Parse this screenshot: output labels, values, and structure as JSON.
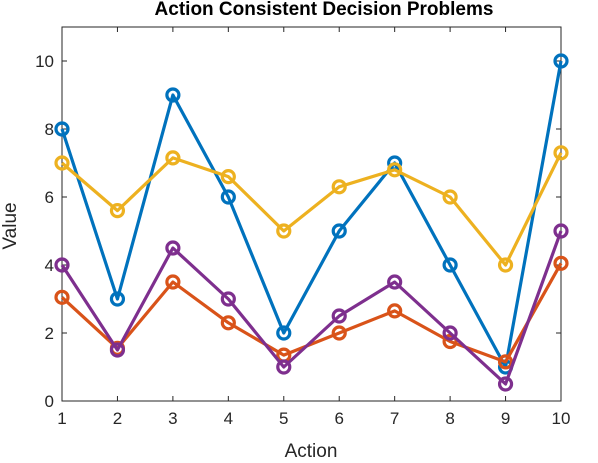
{
  "chart_data": {
    "type": "line",
    "title": "Action Consistent Decision Problems",
    "xlabel": "Action",
    "ylabel": "Value",
    "x": [
      1,
      2,
      3,
      4,
      5,
      6,
      7,
      8,
      9,
      10
    ],
    "xlim": [
      1,
      10
    ],
    "ylim": [
      0,
      11
    ],
    "xticks": [
      1,
      2,
      3,
      4,
      5,
      6,
      7,
      8,
      9,
      10
    ],
    "yticks": [
      0,
      2,
      4,
      6,
      8,
      10
    ],
    "grid": false,
    "legend": "none",
    "marker": "circle",
    "series": [
      {
        "color": "#0072BD",
        "values": [
          8,
          3,
          9,
          6,
          2,
          5,
          7,
          4,
          1,
          10
        ]
      },
      {
        "color": "#D95319",
        "values": [
          3.05,
          1.55,
          3.5,
          2.3,
          1.35,
          2.0,
          2.65,
          1.75,
          1.15,
          4.05
        ]
      },
      {
        "color": "#EDB120",
        "values": [
          7,
          5.6,
          7.15,
          6.6,
          5,
          6.3,
          6.8,
          6,
          4,
          7.3
        ]
      },
      {
        "color": "#7E2F8E",
        "values": [
          4,
          1.5,
          4.5,
          3,
          1,
          2.5,
          3.5,
          2,
          0.5,
          5
        ]
      }
    ]
  }
}
